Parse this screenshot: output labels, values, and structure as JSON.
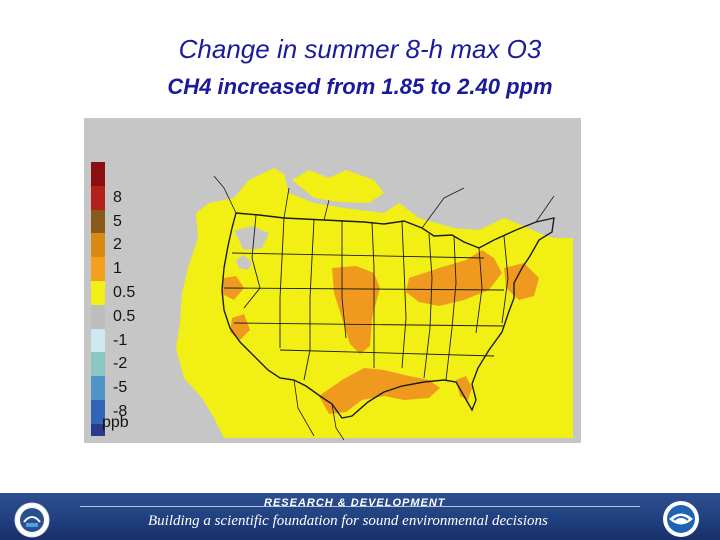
{
  "slide": {
    "title_line1": "Change in summer 8-h max O3",
    "title_line2": "CH4 increased from 1.85 to 2.40 ppm"
  },
  "map": {
    "legend": {
      "unit": "ppb",
      "items": [
        {
          "label": "",
          "color": "#8b0f12"
        },
        {
          "label": "8",
          "color": "#b4201c"
        },
        {
          "label": "5",
          "color": "#8a5a1a"
        },
        {
          "label": "2",
          "color": "#d98a14"
        },
        {
          "label": "1",
          "color": "#f2a01e"
        },
        {
          "label": "0.5",
          "color": "#f2ef14"
        },
        {
          "label": "0.5",
          "color": "#bdbdbd"
        },
        {
          "label": "-1",
          "color": "#cde8ef"
        },
        {
          "label": "-2",
          "color": "#8bc7c2"
        },
        {
          "label": "-5",
          "color": "#4e94c9"
        },
        {
          "label": "-8",
          "color": "#3066b8"
        }
      ],
      "bottom_swatch_color": "#2a3a8c"
    },
    "colors": {
      "background": "#c6c6c6",
      "increase_low": "#f2ef14",
      "increase_mid": "#ef9a1e",
      "boundary": "#1c1c1c"
    }
  },
  "footer": {
    "line1": "RESEARCH & DEVELOPMENT",
    "line2": "Building a scientific foundation for sound environmental decisions"
  }
}
